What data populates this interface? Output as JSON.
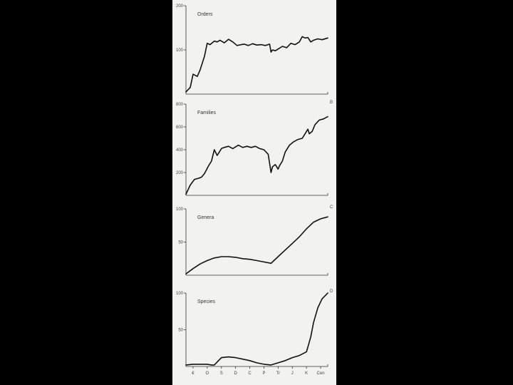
{
  "theme": {
    "background": "#000000",
    "paper": "#f2f2f0",
    "ink": "#111111"
  },
  "chart_data": [
    {
      "type": "line",
      "panel_label": "",
      "title": "Orders",
      "ylim": [
        0,
        200
      ],
      "yticks": [
        100,
        200
      ],
      "x": [
        0,
        0.03,
        0.05,
        0.08,
        0.1,
        0.13,
        0.15,
        0.17,
        0.2,
        0.22,
        0.24,
        0.27,
        0.3,
        0.33,
        0.36,
        0.39,
        0.41,
        0.44,
        0.47,
        0.5,
        0.53,
        0.56,
        0.59,
        0.6,
        0.61,
        0.63,
        0.65,
        0.68,
        0.71,
        0.74,
        0.77,
        0.8,
        0.82,
        0.84,
        0.86,
        0.88,
        0.9,
        0.93,
        0.96,
        1.0
      ],
      "values": [
        5,
        15,
        45,
        40,
        55,
        85,
        115,
        112,
        120,
        118,
        122,
        116,
        124,
        118,
        110,
        112,
        113,
        110,
        114,
        111,
        112,
        110,
        113,
        95,
        100,
        98,
        102,
        108,
        105,
        115,
        112,
        118,
        130,
        127,
        128,
        118,
        122,
        125,
        123,
        127
      ]
    },
    {
      "type": "line",
      "panel_label": "B",
      "title": "Families",
      "ylim": [
        0,
        800
      ],
      "yticks": [
        200,
        400,
        600,
        800
      ],
      "x": [
        0,
        0.03,
        0.06,
        0.09,
        0.11,
        0.13,
        0.16,
        0.18,
        0.2,
        0.22,
        0.23,
        0.25,
        0.27,
        0.3,
        0.33,
        0.37,
        0.4,
        0.43,
        0.46,
        0.49,
        0.52,
        0.55,
        0.58,
        0.6,
        0.61,
        0.63,
        0.65,
        0.66,
        0.68,
        0.7,
        0.73,
        0.76,
        0.79,
        0.82,
        0.84,
        0.86,
        0.87,
        0.89,
        0.91,
        0.94,
        0.97,
        1.0
      ],
      "values": [
        10,
        90,
        140,
        150,
        160,
        190,
        260,
        300,
        400,
        350,
        370,
        410,
        420,
        430,
        410,
        440,
        420,
        430,
        420,
        430,
        410,
        400,
        360,
        200,
        250,
        270,
        230,
        260,
        300,
        380,
        440,
        470,
        490,
        500,
        540,
        580,
        540,
        560,
        620,
        660,
        670,
        690
      ]
    },
    {
      "type": "line",
      "panel_label": "C",
      "title": "Genera",
      "ylim": [
        0,
        100
      ],
      "yticks": [
        50,
        100
      ],
      "x": [
        0,
        0.05,
        0.1,
        0.15,
        0.2,
        0.25,
        0.3,
        0.35,
        0.4,
        0.45,
        0.5,
        0.55,
        0.6,
        0.65,
        0.7,
        0.75,
        0.8,
        0.85,
        0.9,
        0.95,
        1.0
      ],
      "values": [
        2,
        10,
        17,
        22,
        26,
        28,
        28,
        27,
        25,
        24,
        22,
        20,
        18,
        28,
        38,
        48,
        58,
        70,
        80,
        85,
        88
      ]
    },
    {
      "type": "line",
      "panel_label": "D",
      "title": "Species",
      "ylim": [
        0,
        100
      ],
      "yticks": [
        50,
        100
      ],
      "x_tick_labels": [
        "€",
        "O",
        "S",
        "D",
        "C",
        "P",
        "Tr",
        "J",
        "K",
        "Cen"
      ],
      "x": [
        0,
        0.05,
        0.1,
        0.15,
        0.18,
        0.2,
        0.25,
        0.3,
        0.35,
        0.4,
        0.45,
        0.5,
        0.55,
        0.6,
        0.65,
        0.7,
        0.75,
        0.8,
        0.85,
        0.88,
        0.9,
        0.93,
        0.96,
        1.0
      ],
      "values": [
        2,
        3,
        3,
        3,
        2,
        2,
        12,
        13,
        12,
        10,
        8,
        5,
        3,
        2,
        5,
        8,
        12,
        15,
        20,
        40,
        60,
        80,
        92,
        100
      ]
    }
  ]
}
